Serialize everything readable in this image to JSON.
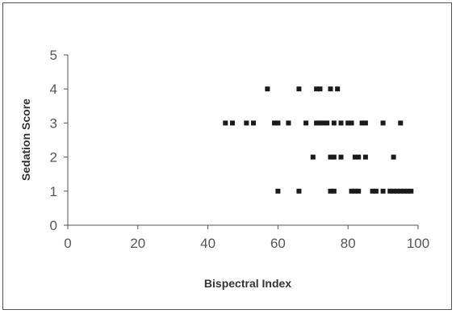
{
  "chart_data": {
    "type": "scatter",
    "xlabel": "Bispectral Index",
    "ylabel": "Sedation Score",
    "xlim": [
      0,
      100
    ],
    "ylim": [
      0,
      5
    ],
    "xticks": [
      0,
      20,
      40,
      60,
      80,
      100
    ],
    "yticks": [
      0,
      1,
      2,
      3,
      4,
      5
    ],
    "grid": false,
    "colors": {
      "point": "#1a1a1a",
      "axis": "#555555",
      "text": "#555555"
    },
    "points": [
      {
        "x": 57,
        "y": 4
      },
      {
        "x": 66,
        "y": 4
      },
      {
        "x": 71,
        "y": 4
      },
      {
        "x": 72,
        "y": 4
      },
      {
        "x": 75,
        "y": 4
      },
      {
        "x": 77,
        "y": 4
      },
      {
        "x": 45,
        "y": 3
      },
      {
        "x": 47,
        "y": 3
      },
      {
        "x": 51,
        "y": 3
      },
      {
        "x": 53,
        "y": 3
      },
      {
        "x": 59,
        "y": 3
      },
      {
        "x": 60,
        "y": 3
      },
      {
        "x": 63,
        "y": 3
      },
      {
        "x": 68,
        "y": 3
      },
      {
        "x": 71,
        "y": 3
      },
      {
        "x": 72,
        "y": 3
      },
      {
        "x": 73,
        "y": 3
      },
      {
        "x": 74,
        "y": 3
      },
      {
        "x": 76,
        "y": 3
      },
      {
        "x": 78,
        "y": 3
      },
      {
        "x": 80,
        "y": 3
      },
      {
        "x": 81,
        "y": 3
      },
      {
        "x": 84,
        "y": 3
      },
      {
        "x": 85,
        "y": 3
      },
      {
        "x": 90,
        "y": 3
      },
      {
        "x": 95,
        "y": 3
      },
      {
        "x": 70,
        "y": 2
      },
      {
        "x": 75,
        "y": 2
      },
      {
        "x": 76,
        "y": 2
      },
      {
        "x": 78,
        "y": 2
      },
      {
        "x": 82,
        "y": 2
      },
      {
        "x": 83,
        "y": 2
      },
      {
        "x": 85,
        "y": 2
      },
      {
        "x": 93,
        "y": 2
      },
      {
        "x": 60,
        "y": 1
      },
      {
        "x": 66,
        "y": 1
      },
      {
        "x": 75,
        "y": 1
      },
      {
        "x": 76,
        "y": 1
      },
      {
        "x": 81,
        "y": 1
      },
      {
        "x": 82,
        "y": 1
      },
      {
        "x": 83,
        "y": 1
      },
      {
        "x": 87,
        "y": 1
      },
      {
        "x": 88,
        "y": 1
      },
      {
        "x": 90,
        "y": 1
      },
      {
        "x": 92,
        "y": 1
      },
      {
        "x": 93,
        "y": 1
      },
      {
        "x": 94,
        "y": 1
      },
      {
        "x": 95,
        "y": 1
      },
      {
        "x": 96,
        "y": 1
      },
      {
        "x": 97,
        "y": 1
      },
      {
        "x": 98,
        "y": 1
      }
    ]
  }
}
